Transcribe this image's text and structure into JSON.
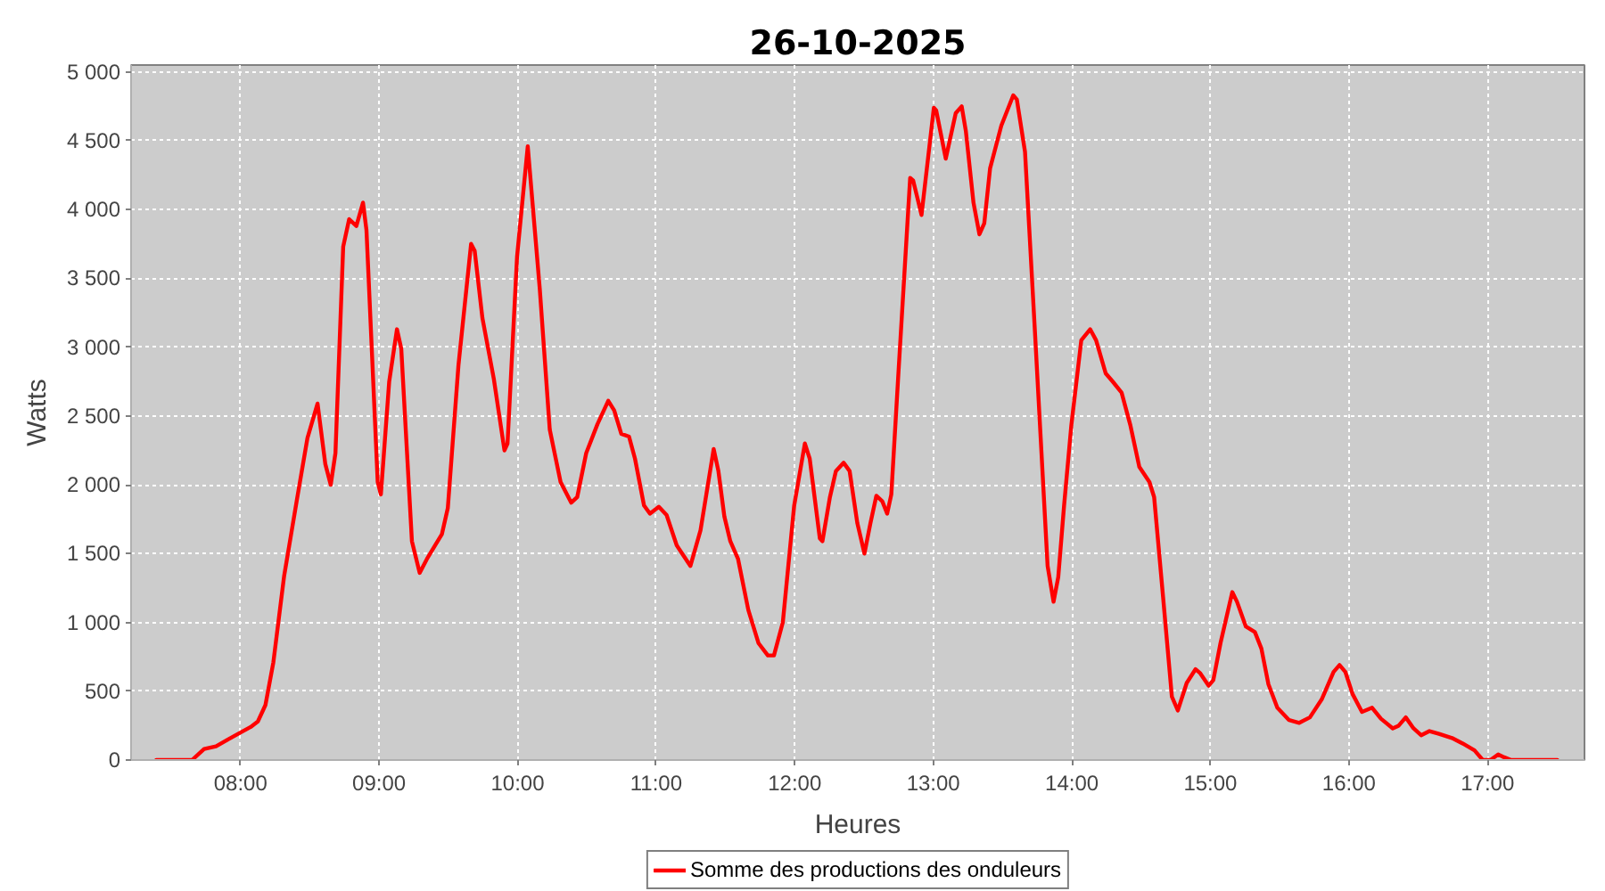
{
  "chart_data": {
    "type": "line",
    "title": "26-10-2025",
    "xlabel": "Heures",
    "ylabel": "Watts",
    "xlim": [
      7.21,
      17.7
    ],
    "ylim": [
      0,
      5050
    ],
    "xticks": [
      {
        "value": 8,
        "label": "08:00"
      },
      {
        "value": 9,
        "label": "09:00"
      },
      {
        "value": 10,
        "label": "10:00"
      },
      {
        "value": 11,
        "label": "11:00"
      },
      {
        "value": 12,
        "label": "12:00"
      },
      {
        "value": 13,
        "label": "13:00"
      },
      {
        "value": 14,
        "label": "14:00"
      },
      {
        "value": 15,
        "label": "15:00"
      },
      {
        "value": 16,
        "label": "16:00"
      },
      {
        "value": 17,
        "label": "17:00"
      }
    ],
    "yticks": [
      0,
      500,
      {
        "value": 1000,
        "label": "1 000"
      },
      {
        "value": 1500,
        "label": "1 500"
      },
      {
        "value": 2000,
        "label": "2 000"
      },
      {
        "value": 2500,
        "label": "2 500"
      },
      {
        "value": 3000,
        "label": "3 000"
      },
      {
        "value": 3500,
        "label": "3 500"
      },
      {
        "value": 4000,
        "label": "4 000"
      },
      {
        "value": 4500,
        "label": "4 500"
      },
      {
        "value": 5000,
        "label": "5 000"
      }
    ],
    "grid": true,
    "legend": "bottom",
    "x": [
      7.392,
      7.49,
      7.58,
      7.65,
      7.737,
      7.823,
      7.91,
      8.0,
      8.073,
      8.125,
      8.18,
      8.237,
      8.315,
      8.405,
      8.483,
      8.556,
      8.612,
      8.651,
      8.685,
      8.741,
      8.784,
      8.836,
      8.884,
      8.909,
      8.948,
      8.99,
      9.013,
      9.073,
      9.129,
      9.16,
      9.237,
      9.293,
      9.345,
      9.41,
      9.453,
      9.496,
      9.573,
      9.664,
      9.69,
      9.746,
      9.828,
      9.905,
      9.927,
      9.996,
      10.073,
      10.16,
      10.232,
      10.31,
      10.387,
      10.43,
      10.495,
      10.576,
      10.654,
      10.697,
      10.748,
      10.804,
      10.847,
      10.912,
      10.955,
      11.019,
      11.075,
      11.148,
      11.247,
      11.32,
      11.415,
      11.449,
      11.492,
      11.535,
      11.591,
      11.665,
      11.738,
      11.806,
      11.85,
      11.914,
      11.996,
      12.073,
      12.108,
      12.181,
      12.2,
      12.254,
      12.297,
      12.353,
      12.396,
      12.452,
      12.503,
      12.546,
      12.589,
      12.632,
      12.667,
      12.697,
      12.75,
      12.833,
      12.855,
      12.915,
      13.004,
      13.021,
      13.09,
      13.162,
      13.205,
      13.235,
      13.29,
      13.333,
      13.368,
      13.41,
      13.491,
      13.577,
      13.603,
      13.662,
      13.731,
      13.825,
      13.868,
      13.902,
      13.944,
      13.996,
      14.068,
      14.132,
      14.175,
      14.244,
      14.295,
      14.359,
      14.423,
      14.487,
      14.56,
      14.594,
      14.658,
      14.722,
      14.765,
      14.829,
      14.893,
      14.927,
      14.987,
      15.021,
      15.073,
      15.158,
      15.192,
      15.256,
      15.321,
      15.368,
      15.419,
      15.483,
      15.568,
      15.641,
      15.718,
      15.803,
      15.889,
      15.932,
      15.974,
      16.026,
      16.094,
      16.167,
      16.231,
      16.316,
      16.359,
      16.41,
      16.466,
      16.521,
      16.581,
      16.65,
      16.744,
      16.821,
      16.906,
      16.966,
      17.021,
      17.077,
      17.12,
      17.171,
      17.256,
      17.342,
      17.427,
      17.504
    ],
    "series": [
      {
        "name": "Somme des productions des onduleurs",
        "color": "#ff0000",
        "values": [
          0,
          0,
          0,
          0,
          80,
          100,
          150,
          200,
          240,
          280,
          400,
          710,
          1340,
          1880,
          2340,
          2590,
          2150,
          2000,
          2230,
          3730,
          3930,
          3880,
          4050,
          3850,
          2970,
          2020,
          1930,
          2750,
          3130,
          2990,
          1590,
          1360,
          1460,
          1570,
          1640,
          1830,
          2870,
          3750,
          3700,
          3210,
          2770,
          2250,
          2300,
          3660,
          4460,
          3420,
          2400,
          2020,
          1870,
          1910,
          2230,
          2440,
          2610,
          2540,
          2370,
          2350,
          2190,
          1850,
          1790,
          1840,
          1780,
          1560,
          1410,
          1670,
          2260,
          2100,
          1770,
          1590,
          1460,
          1090,
          850,
          760,
          760,
          1000,
          1850,
          2300,
          2190,
          1610,
          1590,
          1910,
          2100,
          2160,
          2100,
          1720,
          1500,
          1720,
          1920,
          1880,
          1790,
          1930,
          2840,
          4230,
          4210,
          3960,
          4740,
          4720,
          4370,
          4700,
          4750,
          4570,
          4050,
          3820,
          3900,
          4300,
          4610,
          4830,
          4800,
          4420,
          3160,
          1410,
          1150,
          1330,
          1850,
          2430,
          3050,
          3130,
          3050,
          2810,
          2750,
          2670,
          2430,
          2130,
          2020,
          1910,
          1190,
          460,
          360,
          560,
          660,
          630,
          540,
          580,
          850,
          1220,
          1150,
          970,
          930,
          810,
          550,
          380,
          290,
          270,
          310,
          440,
          640,
          690,
          640,
          480,
          350,
          380,
          300,
          230,
          250,
          310,
          230,
          180,
          210,
          190,
          160,
          120,
          70,
          0,
          0,
          40,
          20,
          0,
          0,
          0,
          0,
          0
        ]
      }
    ]
  }
}
